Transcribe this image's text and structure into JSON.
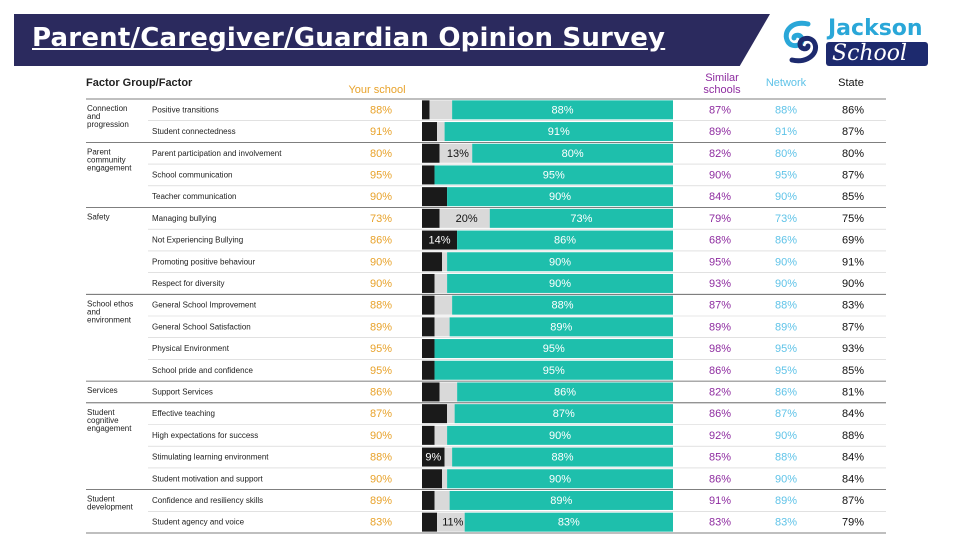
{
  "header": {
    "title": "Parent/Caregiver/Guardian Opinion Survey",
    "logo_name": "Jackson",
    "logo_sub": "School"
  },
  "columns": {
    "factor": "Factor Group/Factor",
    "your_school": "Your school",
    "similar_line1": "Similar",
    "similar_line2": "schools",
    "network": "Network",
    "state": "State"
  },
  "colors": {
    "banner": "#2b2a5e",
    "your_school": "#e8a22a",
    "similar": "#8e2ca0",
    "network": "#5fc3e8",
    "state": "#111111",
    "bar_positive": "#1ebfac",
    "bar_negative": "#1a1a1a",
    "bar_neutral": "#d9d9d9"
  },
  "chart_data": {
    "type": "bar",
    "stacked": true,
    "orientation": "horizontal",
    "series": [
      {
        "name": "negative"
      },
      {
        "name": "neutral"
      },
      {
        "name": "positive"
      }
    ],
    "groups": [
      {
        "name": "Connection and progression",
        "lines": [
          "Connection",
          "and",
          "progression"
        ],
        "rows": [
          0,
          1
        ]
      },
      {
        "name": "Parent community engagement",
        "lines": [
          "Parent",
          "community",
          "engagement"
        ],
        "rows": [
          2,
          3,
          4
        ]
      },
      {
        "name": "Safety",
        "lines": [
          "Safety"
        ],
        "rows": [
          5,
          6,
          7,
          8
        ]
      },
      {
        "name": "School ethos and environment",
        "lines": [
          "School ethos",
          "and",
          "environment"
        ],
        "rows": [
          9,
          10,
          11,
          12
        ]
      },
      {
        "name": "Services",
        "lines": [
          "Services"
        ],
        "rows": [
          13
        ]
      },
      {
        "name": "Student cognitive engagement",
        "lines": [
          "Student",
          "cognitive",
          "engagement"
        ],
        "rows": [
          14,
          15,
          16,
          17
        ]
      },
      {
        "name": "Student development",
        "lines": [
          "Student",
          "development"
        ],
        "rows": [
          18,
          19
        ]
      }
    ],
    "rows": [
      {
        "factor": "Positive transitions",
        "your_school": "88%",
        "negative": 3,
        "neutral": 9,
        "positive": 88,
        "neutral_label": "",
        "negative_label": "",
        "similar": "87%",
        "network": "88%",
        "state": "86%"
      },
      {
        "factor": "Student connectedness",
        "your_school": "91%",
        "negative": 6,
        "neutral": 3,
        "positive": 91,
        "neutral_label": "",
        "negative_label": "",
        "similar": "89%",
        "network": "91%",
        "state": "87%"
      },
      {
        "factor": "Parent participation and involvement",
        "your_school": "80%",
        "negative": 7,
        "neutral": 13,
        "positive": 80,
        "neutral_label": "13%",
        "negative_label": "",
        "similar": "82%",
        "network": "80%",
        "state": "80%"
      },
      {
        "factor": "School communication",
        "your_school": "95%",
        "negative": 5,
        "neutral": 0,
        "positive": 95,
        "neutral_label": "",
        "negative_label": "",
        "similar": "90%",
        "network": "95%",
        "state": "87%"
      },
      {
        "factor": "Teacher communication",
        "your_school": "90%",
        "negative": 10,
        "neutral": 0,
        "positive": 90,
        "neutral_label": "",
        "negative_label": "",
        "similar": "84%",
        "network": "90%",
        "state": "85%"
      },
      {
        "factor": "Managing bullying",
        "your_school": "73%",
        "negative": 7,
        "neutral": 20,
        "positive": 73,
        "neutral_label": "20%",
        "negative_label": "",
        "similar": "79%",
        "network": "73%",
        "state": "75%"
      },
      {
        "factor": "Not Experiencing Bullying",
        "your_school": "86%",
        "negative": 14,
        "neutral": 0,
        "positive": 86,
        "neutral_label": "",
        "negative_label": "14%",
        "similar": "68%",
        "network": "86%",
        "state": "69%"
      },
      {
        "factor": "Promoting positive behaviour",
        "your_school": "90%",
        "negative": 8,
        "neutral": 2,
        "positive": 90,
        "neutral_label": "",
        "negative_label": "",
        "similar": "95%",
        "network": "90%",
        "state": "91%"
      },
      {
        "factor": "Respect for diversity",
        "your_school": "90%",
        "negative": 5,
        "neutral": 5,
        "positive": 90,
        "neutral_label": "",
        "negative_label": "",
        "similar": "93%",
        "network": "90%",
        "state": "90%"
      },
      {
        "factor": "General School Improvement",
        "your_school": "88%",
        "negative": 5,
        "neutral": 7,
        "positive": 88,
        "neutral_label": "",
        "negative_label": "",
        "similar": "87%",
        "network": "88%",
        "state": "83%"
      },
      {
        "factor": "General School Satisfaction",
        "your_school": "89%",
        "negative": 5,
        "neutral": 6,
        "positive": 89,
        "neutral_label": "",
        "negative_label": "",
        "similar": "89%",
        "network": "89%",
        "state": "87%"
      },
      {
        "factor": "Physical Environment",
        "your_school": "95%",
        "negative": 5,
        "neutral": 0,
        "positive": 95,
        "neutral_label": "",
        "negative_label": "",
        "similar": "98%",
        "network": "95%",
        "state": "93%"
      },
      {
        "factor": "School pride and confidence",
        "your_school": "95%",
        "negative": 5,
        "neutral": 0,
        "positive": 95,
        "neutral_label": "",
        "negative_label": "",
        "similar": "86%",
        "network": "95%",
        "state": "85%"
      },
      {
        "factor": "Support Services",
        "your_school": "86%",
        "negative": 7,
        "neutral": 7,
        "positive": 86,
        "neutral_label": "",
        "negative_label": "",
        "similar": "82%",
        "network": "86%",
        "state": "81%"
      },
      {
        "factor": "Effective teaching",
        "your_school": "87%",
        "negative": 10,
        "neutral": 3,
        "positive": 87,
        "neutral_label": "",
        "negative_label": "",
        "similar": "86%",
        "network": "87%",
        "state": "84%"
      },
      {
        "factor": "High expectations for success",
        "your_school": "90%",
        "negative": 5,
        "neutral": 5,
        "positive": 90,
        "neutral_label": "",
        "negative_label": "",
        "similar": "92%",
        "network": "90%",
        "state": "88%"
      },
      {
        "factor": "Stimulating learning environment",
        "your_school": "88%",
        "negative": 9,
        "neutral": 3,
        "positive": 88,
        "neutral_label": "",
        "negative_label": "9%",
        "similar": "85%",
        "network": "88%",
        "state": "84%"
      },
      {
        "factor": "Student motivation and support",
        "your_school": "90%",
        "negative": 8,
        "neutral": 2,
        "positive": 90,
        "neutral_label": "",
        "negative_label": "",
        "similar": "86%",
        "network": "90%",
        "state": "84%"
      },
      {
        "factor": "Confidence and resiliency skills",
        "your_school": "89%",
        "negative": 5,
        "neutral": 6,
        "positive": 89,
        "neutral_label": "",
        "negative_label": "",
        "similar": "91%",
        "network": "89%",
        "state": "87%"
      },
      {
        "factor": "Student agency and voice",
        "your_school": "83%",
        "negative": 6,
        "neutral": 11,
        "positive": 83,
        "neutral_label": "11%",
        "negative_label": "",
        "similar": "83%",
        "network": "83%",
        "state": "79%"
      }
    ]
  }
}
